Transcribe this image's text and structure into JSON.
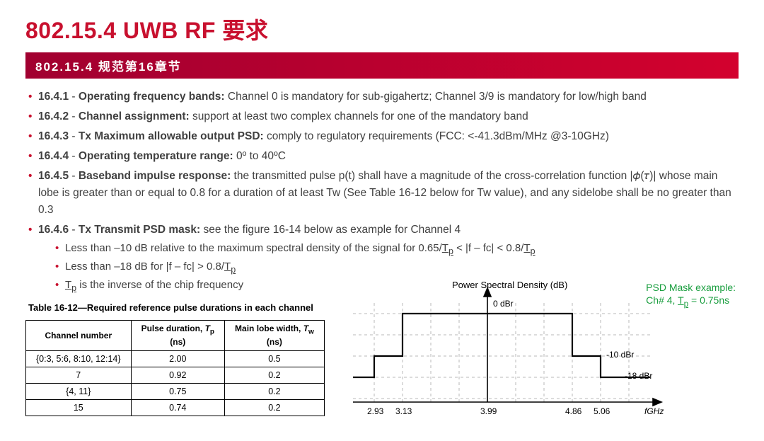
{
  "title": {
    "text": "802.15.4 UWB RF 要求",
    "color": "#c8102e"
  },
  "subtitle_bar": {
    "text": "802.15.4 规范第16章节",
    "background": "#b4073b",
    "gradient_from": "#a10030",
    "gradient_to": "#d3012e"
  },
  "bullets": [
    {
      "num": "16.4.1",
      "head": "Operating frequency bands:",
      "body": " Channel 0 is mandatory for sub-gigahertz; Channel 3/9 is mandatory for low/high band"
    },
    {
      "num": "16.4.2",
      "head": "Channel assignment:",
      "body": " support at least two complex channels for one of the mandatory band"
    },
    {
      "num": "16.4.3",
      "head": "Tx Maximum allowable output PSD:",
      "body": " comply to regulatory requirements (FCC: <-41.3dBm/MHz @3-10GHz)"
    },
    {
      "num": "16.4.4",
      "head": "Operating temperature range:",
      "body": " 0º to 40ºC"
    },
    {
      "num": "16.4.5",
      "head": "Baseband impulse response:",
      "body": " the transmitted pulse p(t) shall have a magnitude of the cross-correlation function  |𝜙(𝜏)| whose main lobe is greater than or equal to 0.8 for a duration of at least Tw (See Table 16-12 below for Tw value), and any sidelobe shall be no greater than 0.3"
    },
    {
      "num": "16.4.6",
      "head": "Tx Transmit PSD mask:",
      "body": " see the figure 16-14 below as example for Channel 4"
    }
  ],
  "sub_bullets": {
    "line1_a": "Less than –10 dB relative to the maximum spectral density of the signal for 0.65/",
    "line1_tp1": "T",
    "line1_sub1": "p",
    "line1_b": " < |f – fc| < 0.8/",
    "line1_tp2": "T",
    "line1_sub2": "p",
    "line2_a": "Less than –18 dB for |f – fc| > 0.8/",
    "line2_tp": "T",
    "line2_sub": "p",
    "line3_tp": "T",
    "line3_sub": "p",
    "line3_b": " is the inverse of the chip frequency"
  },
  "table": {
    "caption": "Table 16-12—Required reference pulse durations in each channel",
    "headers": {
      "c1": "Channel number",
      "c2a": "Pulse duration, ",
      "c2i": "T",
      "c2s": "p",
      "c2b": "(ns)",
      "c3a": "Main lobe width, ",
      "c3i": "T",
      "c3s": "w",
      "c3b": "(ns)"
    },
    "rows": [
      {
        "ch": "{0:3, 5:6, 8:10, 12:14}",
        "tp": "2.00",
        "tw": "0.5"
      },
      {
        "ch": "7",
        "tp": "0.92",
        "tw": "0.2"
      },
      {
        "ch": "{4, 11}",
        "tp": "0.75",
        "tw": "0.2"
      },
      {
        "ch": "15",
        "tp": "0.74",
        "tw": "0.2"
      }
    ]
  },
  "chart": {
    "title": "Power Spectral Density (dB)",
    "y0_label": "0 dBr",
    "y10_label": "-10 dBr",
    "y18_label": "-18 dBr",
    "xaxis_label": "fGHz",
    "xticks": [
      "2.93",
      "3.13",
      "3.99",
      "4.86",
      "5.06"
    ],
    "line_color": "#000000",
    "grid_color": "#b8b8b8",
    "background": "#ffffff"
  },
  "psd_note": {
    "line1": "PSD Mask example:",
    "line2a": "Ch# 4, ",
    "line2tp": "T",
    "line2sub": "p",
    "line2b": " = 0.75ns",
    "color": "#1a9e3f"
  },
  "bullet_marker_color": "#c8102e"
}
